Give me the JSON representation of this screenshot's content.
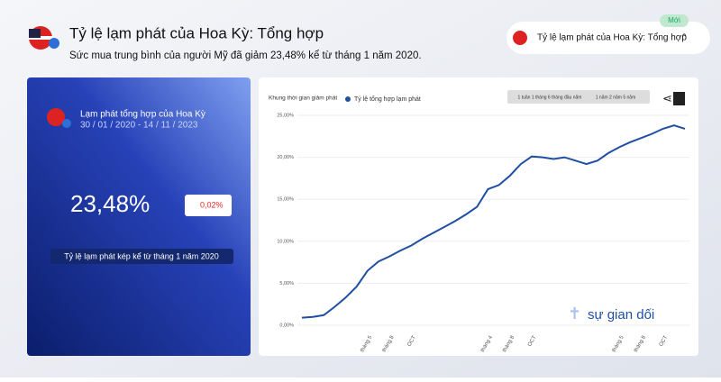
{
  "header": {
    "title": "Tỷ lệ lạm phát của Hoa Kỳ: Tổng hợp",
    "subtitle": "Sức mua trung bình của người Mỹ đã giảm 23,48% kể từ tháng 1 năm 2020."
  },
  "selector": {
    "badge": "Mới",
    "label": "Tỷ lệ lạm phát của Hoa Kỳ: Tổng hợp"
  },
  "card": {
    "title": "Lạm phát tổng hợp của Hoa Kỳ",
    "date_range": "30 / 01 / 2020 - 14 / 11 / 2023",
    "value": "23,48%",
    "change": "0,02%",
    "caption": "Tỷ lệ lạm phát kép kể từ tháng 1 năm 2020"
  },
  "controls": {
    "range_a": "1 tuần 1 tháng 6 tháng đầu năm",
    "range_b": "1 năm 2 năm 5 năm"
  },
  "watermark": "sự gian dối",
  "chart_data": {
    "type": "line",
    "annotation": "Khung thời gian giảm phát",
    "categories": [
      null,
      null,
      null,
      null,
      null,
      null,
      "tháng 5",
      null,
      "tháng 8",
      null,
      "OCT",
      null,
      null,
      null,
      null,
      null,
      null,
      "tháng 4",
      null,
      "tháng 8",
      null,
      "OCT",
      null,
      null,
      null,
      null,
      null,
      null,
      null,
      "tháng 5",
      null,
      "tháng 8",
      null,
      "OCT",
      null,
      null
    ],
    "series": [
      {
        "name": "Tỷ lệ tổng hợp lạm phát",
        "color": "#1f4fa3",
        "values": [
          0.9,
          1.0,
          1.2,
          2.2,
          3.3,
          4.6,
          6.5,
          7.6,
          8.2,
          8.9,
          9.5,
          10.3,
          11.0,
          11.7,
          12.4,
          13.2,
          14.1,
          16.2,
          16.7,
          17.8,
          19.2,
          20.1,
          20.0,
          19.8,
          20.0,
          19.6,
          19.2,
          19.6,
          20.5,
          21.2,
          21.8,
          22.3,
          22.8,
          23.4,
          23.8,
          23.4
        ]
      }
    ],
    "ylim": [
      0,
      25
    ],
    "yticks": [
      {
        "value": 0,
        "label": "0,00%"
      },
      {
        "value": 5,
        "label": "5,00%"
      },
      {
        "value": 10,
        "label": "10,00%"
      },
      {
        "value": 15,
        "label": "15,00%"
      },
      {
        "value": 20,
        "label": "20,00%"
      },
      {
        "value": 25,
        "label": "25,00%"
      }
    ],
    "grid": true
  }
}
